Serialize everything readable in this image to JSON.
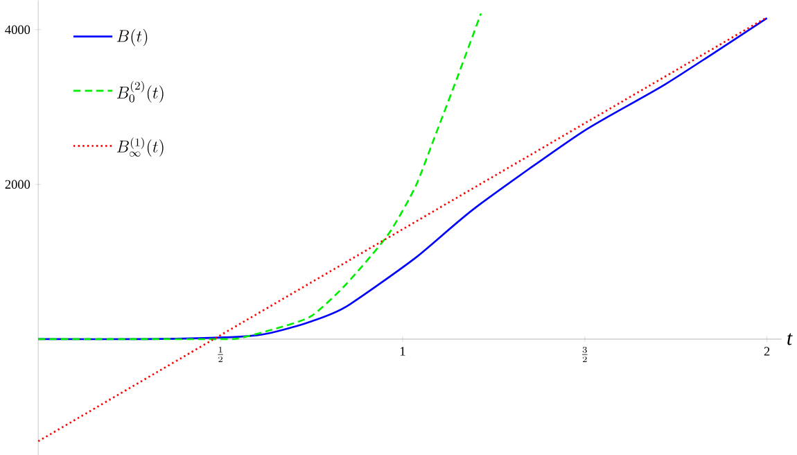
{
  "chart_data": {
    "type": "line",
    "xlabel": "t",
    "xlim": [
      0,
      2.04
    ],
    "ylim": [
      -1500,
      4380
    ],
    "xticks": [
      {
        "value": 0.5,
        "label": "\\frac{1}{2}"
      },
      1,
      {
        "value": 1.5,
        "label": "\\frac{3}{2}"
      },
      2
    ],
    "yticks": [
      2000,
      4000
    ],
    "legend": "top left",
    "grid": false,
    "series": [
      {
        "name": "B(t)",
        "color": "#0000ff",
        "line_style": "solid",
        "x": [
          0,
          0.3,
          0.5,
          0.6,
          0.655,
          0.75,
          0.845,
          1.035,
          1.2,
          1.494,
          1.723,
          2
        ],
        "values": [
          0,
          0,
          20,
          50,
          100,
          230,
          420,
          1050,
          1700,
          2680,
          3300,
          4150
        ]
      },
      {
        "name": "B_0^{(2)}(t)",
        "color": "#00ee00",
        "line_style": "dashed",
        "x": [
          0,
          0.3,
          0.5,
          0.55,
          0.655,
          0.75,
          0.845,
          0.96,
          1.035,
          1.087,
          1.15,
          1.215
        ],
        "values": [
          0,
          0,
          0,
          10,
          140,
          300,
          710,
          1350,
          1970,
          2600,
          3380,
          4210
        ]
      },
      {
        "name": "B_\\infty^{(1)}(t)",
        "color": "#ff0000",
        "line_style": "dotted",
        "x": [
          0,
          2
        ],
        "values": [
          -1320,
          4160
        ]
      }
    ]
  }
}
